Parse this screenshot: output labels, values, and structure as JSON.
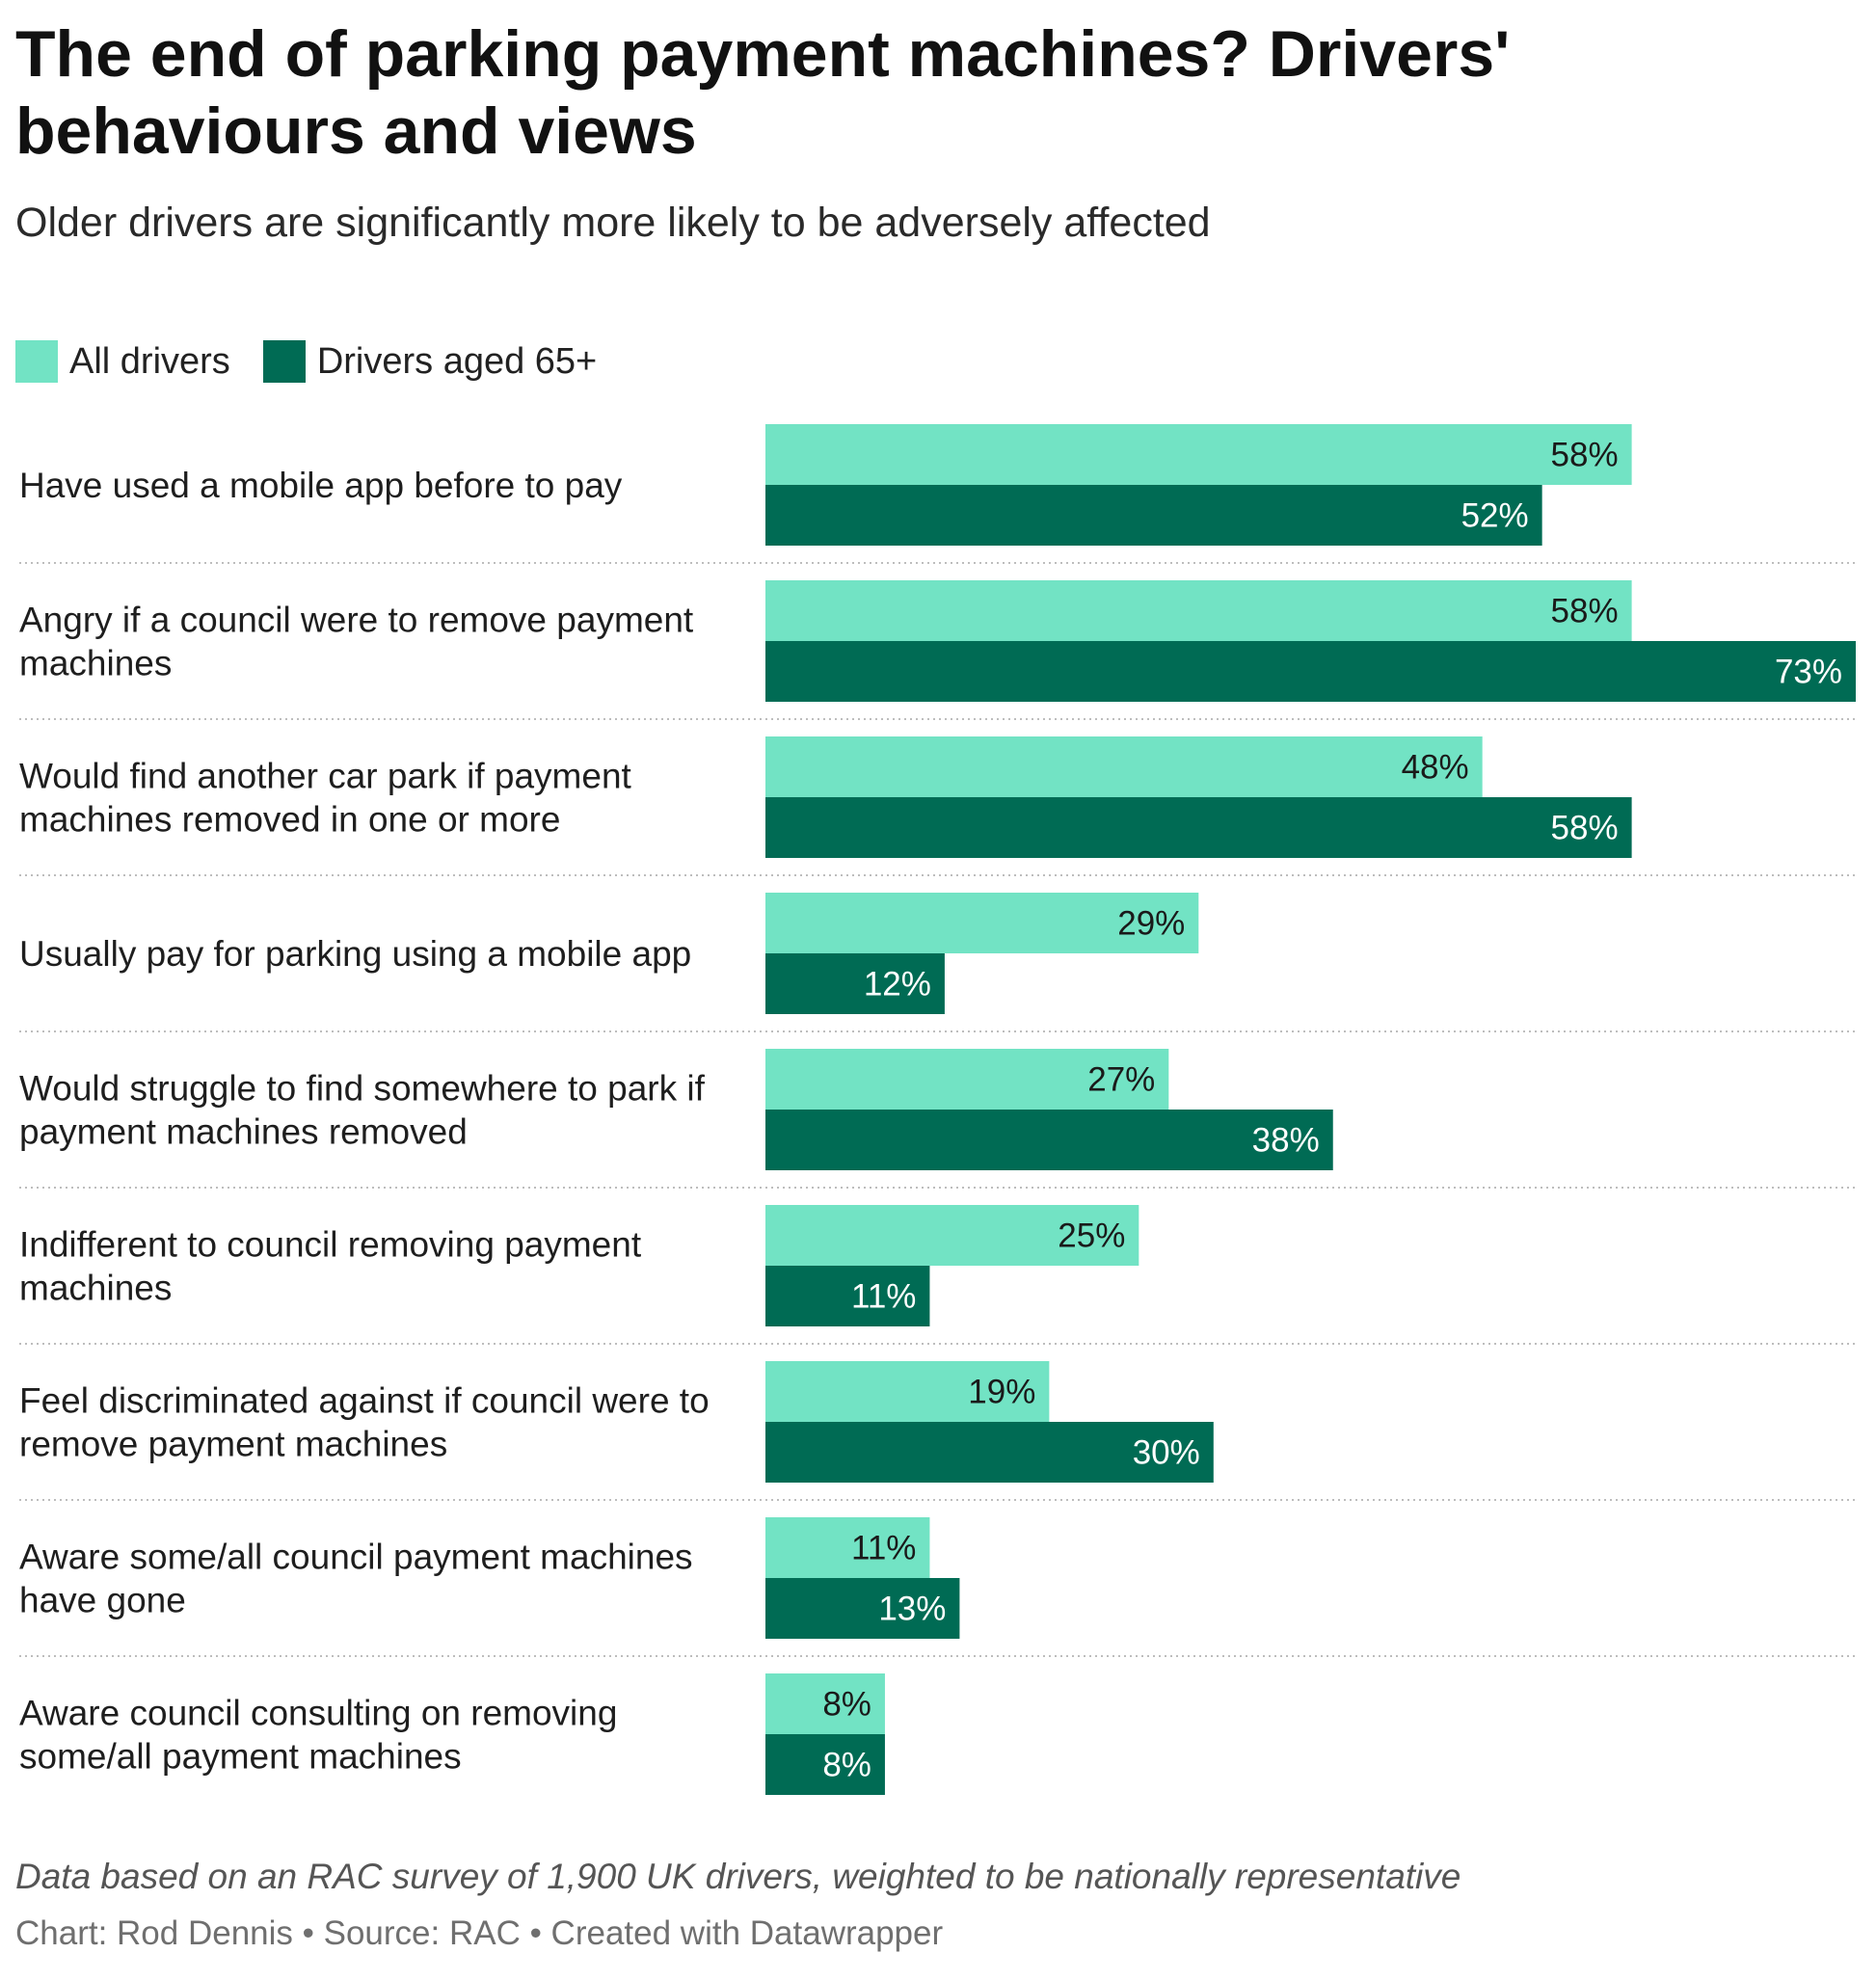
{
  "title": "The end of parking payment machines? Drivers' behaviours and views",
  "subtitle": "Older drivers are significantly more likely to be adversely affected",
  "legend": [
    {
      "label": "All drivers",
      "color": "#72e3c4"
    },
    {
      "label": "Drivers aged 65+",
      "color": "#006b54"
    }
  ],
  "chart_data": {
    "type": "bar",
    "orientation": "horizontal",
    "grouped": true,
    "categories": [
      "Have used a mobile app before to pay",
      "Angry if a council were to remove payment machines",
      "Would find another car park if payment machines removed in one or more",
      "Usually pay for parking using a mobile app",
      "Would struggle to find somewhere to park if payment machines removed",
      "Indifferent to council removing payment machines",
      "Feel discriminated against if council were to remove payment machines",
      "Aware some/all council payment machines have gone",
      "Aware council consulting on removing some/all payment machines"
    ],
    "category_lines": [
      [
        "Have used a mobile app before to pay"
      ],
      [
        "Angry if a council were to remove payment",
        "machines"
      ],
      [
        "Would find another car park if payment",
        "machines removed in one or more"
      ],
      [
        "Usually pay for parking using a mobile app"
      ],
      [
        "Would struggle to find somewhere to park if",
        "payment machines removed"
      ],
      [
        "Indifferent to council removing payment",
        "machines"
      ],
      [
        "Feel discriminated against if council were to",
        "remove payment machines"
      ],
      [
        "Aware some/all council payment machines",
        "have gone"
      ],
      [
        "Aware council consulting on removing",
        "some/all payment machines"
      ]
    ],
    "series": [
      {
        "name": "All drivers",
        "color": "#72e3c4",
        "label_color": "#1a1a1a",
        "values": [
          58,
          58,
          48,
          29,
          27,
          25,
          19,
          11,
          8
        ]
      },
      {
        "name": "Drivers aged 65+",
        "color": "#006b54",
        "label_color": "#ffffff",
        "values": [
          52,
          73,
          58,
          12,
          38,
          11,
          30,
          13,
          8
        ]
      }
    ],
    "value_suffix": "%",
    "xlim": [
      0,
      73
    ],
    "separators": "dotted"
  },
  "note": "Data based on an RAC survey of 1,900 UK drivers, weighted to be nationally representative",
  "byline": "Chart: Rod Dennis • Source: RAC • Created with Datawrapper"
}
